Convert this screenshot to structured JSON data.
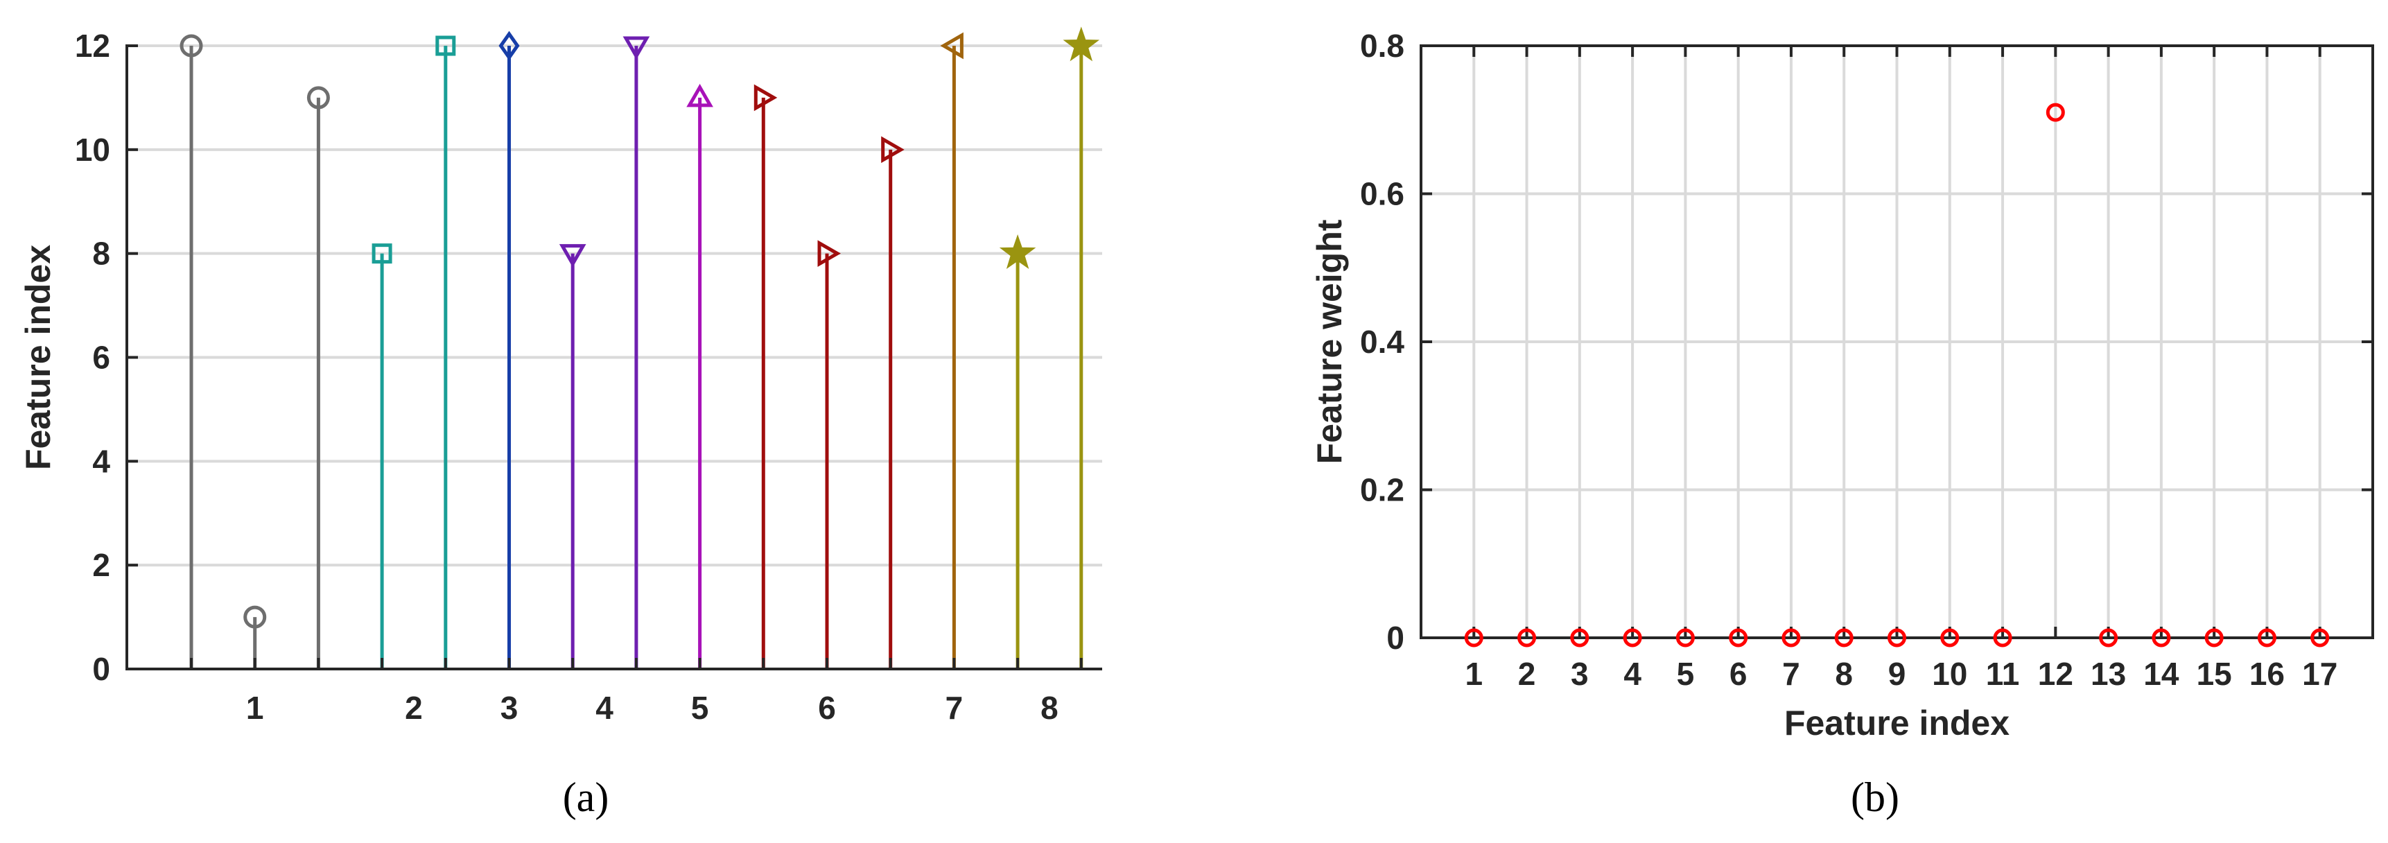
{
  "chart_data": [
    {
      "panel": "a",
      "caption": "(a)",
      "type": "stem",
      "xlabel": "",
      "ylabel": "Feature index",
      "ylim": [
        0,
        12
      ],
      "yticks": [
        0,
        2,
        4,
        6,
        8,
        10,
        12
      ],
      "grid": "horizontal",
      "groups": [
        {
          "label": "1",
          "marker": "circle",
          "color": "#6e6e6e",
          "values": [
            12,
            1,
            11
          ]
        },
        {
          "label": "2",
          "marker": "square",
          "color": "#1a9e96",
          "values": [
            8,
            12
          ]
        },
        {
          "label": "3",
          "marker": "diamond",
          "color": "#173ea8",
          "values": [
            12
          ]
        },
        {
          "label": "4",
          "marker": "triangle-down",
          "color": "#6e1fb0",
          "values": [
            8,
            12
          ]
        },
        {
          "label": "5",
          "marker": "triangle-up",
          "color": "#a812b8",
          "values": [
            11
          ]
        },
        {
          "label": "6",
          "marker": "triangle-right",
          "color": "#a00d0d",
          "values": [
            11,
            8,
            10
          ]
        },
        {
          "label": "7",
          "marker": "triangle-left",
          "color": "#a0640d",
          "values": [
            12
          ]
        },
        {
          "label": "8",
          "marker": "star",
          "color": "#9a9410",
          "values": [
            8,
            12
          ]
        }
      ]
    },
    {
      "panel": "b",
      "caption": "(b)",
      "type": "scatter",
      "xlabel": "Feature index",
      "ylabel": "Feature weight",
      "ylim": [
        0,
        0.8
      ],
      "yticks": [
        "0",
        "0.2",
        "0.4",
        "0.6",
        "0.8"
      ],
      "grid": "both",
      "marker": "circle",
      "color": "#ff0000",
      "x": [
        1,
        2,
        3,
        4,
        5,
        6,
        7,
        8,
        9,
        10,
        11,
        12,
        13,
        14,
        15,
        16,
        17
      ],
      "y": [
        0,
        0,
        0,
        0,
        0,
        0,
        0,
        0,
        0,
        0,
        0,
        0.71,
        0,
        0,
        0,
        0,
        0
      ]
    }
  ]
}
